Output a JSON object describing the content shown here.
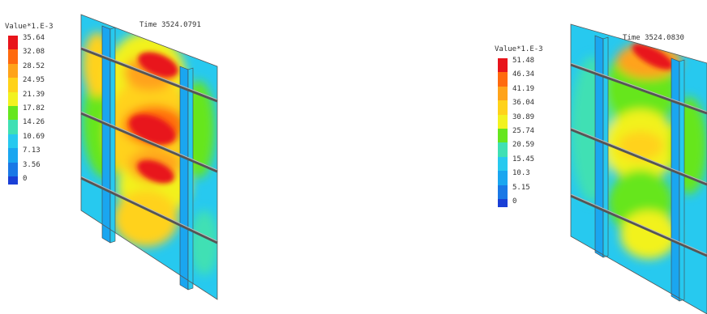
{
  "left": {
    "legend_title": "Value*1.E-3",
    "time_label": "Time 3524.0791",
    "levels": [
      "35.64",
      "32.08",
      "28.52",
      "24.95",
      "21.39",
      "17.82",
      "14.26",
      "10.69",
      "7.13",
      "3.56",
      "0"
    ]
  },
  "right": {
    "legend_title": "Value*1.E-3",
    "time_label": "Time 3524.0830",
    "levels": [
      "51.48",
      "46.34",
      "41.19",
      "36.04",
      "30.89",
      "25.74",
      "20.59",
      "15.45",
      "10.3",
      "5.15",
      "0"
    ]
  },
  "colors": [
    "#e8141b",
    "#ff6a0e",
    "#ffa31a",
    "#ffd21a",
    "#f2f21f",
    "#66e61e",
    "#3fe0b4",
    "#27c9ef",
    "#1aa6f0",
    "#1a78e6",
    "#1a3fd6"
  ]
}
